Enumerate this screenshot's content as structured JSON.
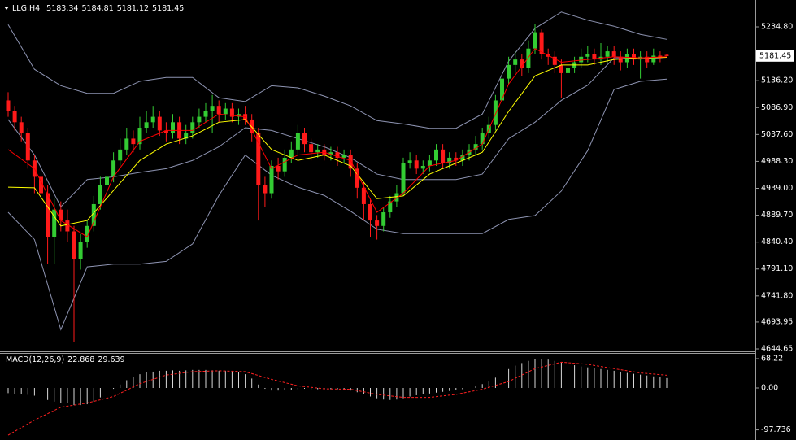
{
  "chart_data": [
    {
      "type": "candlestick",
      "symbol": "LLG,H4",
      "up_color": "#33cc33",
      "down_color": "#ff1a1a",
      "ylim": [
        4640.2,
        5284.0
      ],
      "yticks": [
        {
          "value": 5234.8,
          "label": "5234.80"
        },
        {
          "value": 5136.2,
          "label": "5136.20"
        },
        {
          "value": 5086.9,
          "label": "5086.90"
        },
        {
          "value": 5037.6,
          "label": "5037.60"
        },
        {
          "value": 4988.3,
          "label": "4988.30"
        },
        {
          "value": 4939,
          "label": "4939.00"
        },
        {
          "value": 4889.7,
          "label": "4889.70"
        },
        {
          "value": 4840.4,
          "label": "4840.40"
        },
        {
          "value": 4791.1,
          "label": "4791.10"
        },
        {
          "value": 4741.8,
          "label": "4741.80"
        },
        4693.95,
        4644.65
      ],
      "open": [
        5100,
        5080,
        5060,
        5040,
        4990,
        4960,
        4930,
        4850,
        4900,
        4880,
        4860,
        4810,
        4840,
        4870,
        4910,
        4945,
        4960,
        4990,
        5010,
        5030,
        5020,
        5050,
        5060,
        5070,
        5045,
        5040,
        5060,
        5030,
        5040,
        5060,
        5070,
        5080,
        5090,
        5075,
        5085,
        5070,
        5075,
        5065,
        5040,
        4945,
        4930,
        4980,
        4970,
        4995,
        5010,
        5040,
        5020,
        5005,
        5010,
        5000,
        5005,
        4995,
        5000,
        4975,
        4940,
        4910,
        4880,
        4870,
        4895,
        4915,
        4930,
        4985,
        4990,
        4975,
        4980,
        4990,
        5010,
        4985,
        4995,
        4990,
        5000,
        5010,
        5020,
        5040,
        5055,
        5100,
        5140,
        5165,
        5175,
        5160,
        5195,
        5225,
        5185,
        5180,
        5165,
        5150,
        5160,
        5170,
        5180,
        5185,
        5175,
        5180,
        5190,
        5180,
        5170,
        5185,
        5175,
        5180,
        5170,
        5182,
        5183.34
      ],
      "high": [
        5115,
        5090,
        5070,
        5050,
        5000,
        4975,
        4945,
        4920,
        4915,
        4900,
        4870,
        4855,
        4880,
        4925,
        4960,
        4975,
        5005,
        5030,
        5050,
        5045,
        5070,
        5080,
        5090,
        5080,
        5060,
        5075,
        5070,
        5055,
        5070,
        5085,
        5095,
        5110,
        5100,
        5095,
        5095,
        5085,
        5090,
        5075,
        5050,
        4960,
        4990,
        4995,
        5010,
        5025,
        5055,
        5050,
        5030,
        5020,
        5020,
        5015,
        5015,
        5010,
        5010,
        4985,
        4950,
        4920,
        4890,
        4905,
        4925,
        4945,
        4995,
        5005,
        5000,
        4990,
        5000,
        5020,
        5020,
        5005,
        5005,
        5010,
        5020,
        5035,
        5050,
        5070,
        5110,
        5175,
        5180,
        5190,
        5185,
        5210,
        5240,
        5230,
        5195,
        5190,
        5175,
        5170,
        5180,
        5195,
        5200,
        5195,
        5205,
        5200,
        5200,
        5190,
        5195,
        5195,
        5190,
        5190,
        5195,
        5190,
        5184.81
      ],
      "low": [
        5070,
        5045,
        5025,
        4975,
        4930,
        4900,
        4800,
        4800,
        4860,
        4840,
        4658,
        4790,
        4830,
        4860,
        4900,
        4935,
        4950,
        4980,
        5000,
        5005,
        5010,
        5040,
        5050,
        5035,
        5025,
        5030,
        5020,
        5020,
        5030,
        5050,
        5060,
        5040,
        5060,
        5065,
        5060,
        5055,
        5055,
        5025,
        4880,
        4905,
        4920,
        4955,
        4960,
        4985,
        5000,
        5005,
        4990,
        4995,
        4990,
        4990,
        4980,
        4985,
        4960,
        4920,
        4880,
        4850,
        4845,
        4860,
        4885,
        4905,
        4925,
        4975,
        4965,
        4965,
        4970,
        4980,
        4975,
        4975,
        4980,
        4980,
        4990,
        5000,
        5010,
        5030,
        5045,
        5090,
        5130,
        5150,
        5145,
        5150,
        5185,
        5175,
        5165,
        5150,
        5105,
        5140,
        5150,
        5160,
        5170,
        5165,
        5165,
        5170,
        5165,
        5155,
        5160,
        5165,
        5140,
        5160,
        5165,
        5170,
        5181.12
      ],
      "close": [
        5080,
        5060,
        5040,
        4990,
        4960,
        4930,
        4850,
        4900,
        4880,
        4860,
        4810,
        4840,
        4870,
        4910,
        4945,
        4960,
        4990,
        5010,
        5030,
        5020,
        5050,
        5060,
        5070,
        5045,
        5040,
        5060,
        5030,
        5040,
        5060,
        5070,
        5080,
        5090,
        5075,
        5085,
        5070,
        5075,
        5065,
        5040,
        4945,
        4930,
        4980,
        4970,
        4995,
        5010,
        5040,
        5020,
        5005,
        5010,
        5000,
        5005,
        4995,
        5000,
        4975,
        4940,
        4910,
        4880,
        4870,
        4895,
        4915,
        4930,
        4985,
        4990,
        4975,
        4980,
        4990,
        5010,
        4985,
        4995,
        4990,
        5000,
        5010,
        5020,
        5040,
        5055,
        5100,
        5140,
        5165,
        5175,
        5160,
        5195,
        5225,
        5185,
        5180,
        5165,
        5150,
        5160,
        5170,
        5180,
        5185,
        5175,
        5180,
        5190,
        5180,
        5170,
        5185,
        5175,
        5180,
        5170,
        5182,
        5178,
        5181.45
      ],
      "lines": [
        {
          "color": "#8e94b2",
          "x": [
            0,
            4,
            8,
            12,
            16,
            20,
            24,
            28,
            32,
            36,
            40,
            44,
            48,
            52,
            56,
            60,
            64,
            68,
            72,
            76,
            80,
            84,
            88,
            92,
            96,
            100
          ],
          "values": [
            5239,
            5157,
            5127,
            5113,
            5113,
            5135,
            5142,
            5142,
            5105,
            5098,
            5127,
            5123,
            5108,
            5090,
            5063,
            5057,
            5049,
            5049,
            5075,
            5172,
            5232,
            5262,
            5247,
            5236,
            5221,
            5212
          ]
        },
        {
          "color": "#8e94b2",
          "x": [
            0,
            4,
            8,
            12,
            16,
            20,
            24,
            28,
            32,
            36,
            40,
            44,
            48,
            52,
            56,
            60,
            64,
            68,
            72,
            76,
            80,
            84,
            88,
            92,
            96,
            100
          ],
          "values": [
            5065,
            5000,
            4905,
            4955,
            4960,
            4968,
            4975,
            4990,
            5015,
            5050,
            5045,
            5030,
            5015,
            4995,
            4965,
            4955,
            4955,
            4955,
            4965,
            5030,
            5060,
            5100,
            5128,
            5178,
            5178,
            5176
          ]
        },
        {
          "color": "#8e94b2",
          "x": [
            0,
            4,
            8,
            12,
            16,
            20,
            24,
            28,
            32,
            36,
            40,
            44,
            48,
            52,
            56,
            60,
            64,
            68,
            72,
            76,
            80,
            84,
            88,
            92,
            96,
            100
          ],
          "values": [
            4895,
            4845,
            4680,
            4795,
            4800,
            4800,
            4805,
            4837,
            4926,
            5000,
            4963,
            4941,
            4926,
            4897,
            4864,
            4856,
            4856,
            4856,
            4856,
            4882,
            4889,
            4934,
            5008,
            5120,
            5135,
            5139
          ]
        },
        {
          "color": "#ffff00",
          "x": [
            0,
            4,
            8,
            12,
            16,
            20,
            24,
            28,
            32,
            36,
            40,
            44,
            48,
            52,
            56,
            60,
            64,
            68,
            72,
            76,
            80,
            84,
            88,
            92,
            96,
            100
          ],
          "values": [
            4941,
            4940,
            4870,
            4880,
            4935,
            4990,
            5020,
            5035,
            5060,
            5065,
            5010,
            4990,
            5000,
            4980,
            4920,
            4925,
            4965,
            4985,
            5005,
            5080,
            5145,
            5165,
            5165,
            5175,
            5178,
            5179
          ]
        },
        {
          "color": "#ff0000",
          "x": [
            0,
            4,
            8,
            12,
            16,
            20,
            24,
            28,
            32,
            36,
            40,
            44,
            48,
            52,
            56,
            60,
            64,
            68,
            72,
            76,
            80,
            84,
            88,
            92,
            96,
            100
          ],
          "values": [
            5010,
            4975,
            4880,
            4850,
            4960,
            5025,
            5045,
            5045,
            5075,
            5070,
            4975,
            5000,
            5005,
            4990,
            4895,
            4930,
            4980,
            4990,
            5020,
            5130,
            5195,
            5170,
            5175,
            5180,
            5178,
            5180
          ]
        }
      ]
    },
    {
      "type": "macd",
      "title": "MACD(12,26,9)",
      "color": "#d8d8d8",
      "ylim": [
        -115.6,
        79.6
      ],
      "yticks": [
        68.22,
        {
          "value": 0,
          "label": "0.00"
        },
        -97.736
      ],
      "values": [
        -12,
        -14,
        -15,
        -16,
        -18,
        -22,
        -28,
        -32,
        -35,
        -36,
        -40,
        -40,
        -38,
        -32,
        -22,
        -12,
        -2,
        8,
        18,
        26,
        32,
        36,
        38,
        40,
        40,
        41,
        40,
        41,
        42,
        42,
        42,
        41,
        40,
        40,
        39,
        38,
        32,
        22,
        8,
        -2,
        -6,
        -6,
        -5,
        -4,
        -3,
        -2,
        -3,
        -3,
        -2,
        -3,
        -3,
        -4,
        -6,
        -10,
        -15,
        -20,
        -24,
        -27,
        -28,
        -27,
        -24,
        -20,
        -17,
        -15,
        -13,
        -11,
        -9,
        -7,
        -5,
        -3,
        0,
        4,
        9,
        15,
        24,
        34,
        44,
        52,
        58,
        63,
        67,
        68,
        66,
        63,
        59,
        56,
        53,
        50,
        48,
        46,
        44,
        42,
        40,
        38,
        35,
        33,
        31,
        29,
        27,
        25,
        22.868
      ],
      "signal": {
        "color": "#ff2020",
        "x": [
          0,
          4,
          8,
          12,
          16,
          20,
          24,
          28,
          32,
          36,
          40,
          44,
          48,
          52,
          56,
          60,
          64,
          68,
          72,
          76,
          80,
          84,
          88,
          92,
          96,
          100
        ],
        "values": [
          -110,
          -75,
          -45,
          -35,
          -20,
          10,
          30,
          38,
          40,
          38,
          20,
          5,
          -2,
          -3,
          -15,
          -22,
          -22,
          -15,
          -3,
          15,
          45,
          60,
          55,
          45,
          35,
          29.639
        ]
      }
    }
  ]
}
